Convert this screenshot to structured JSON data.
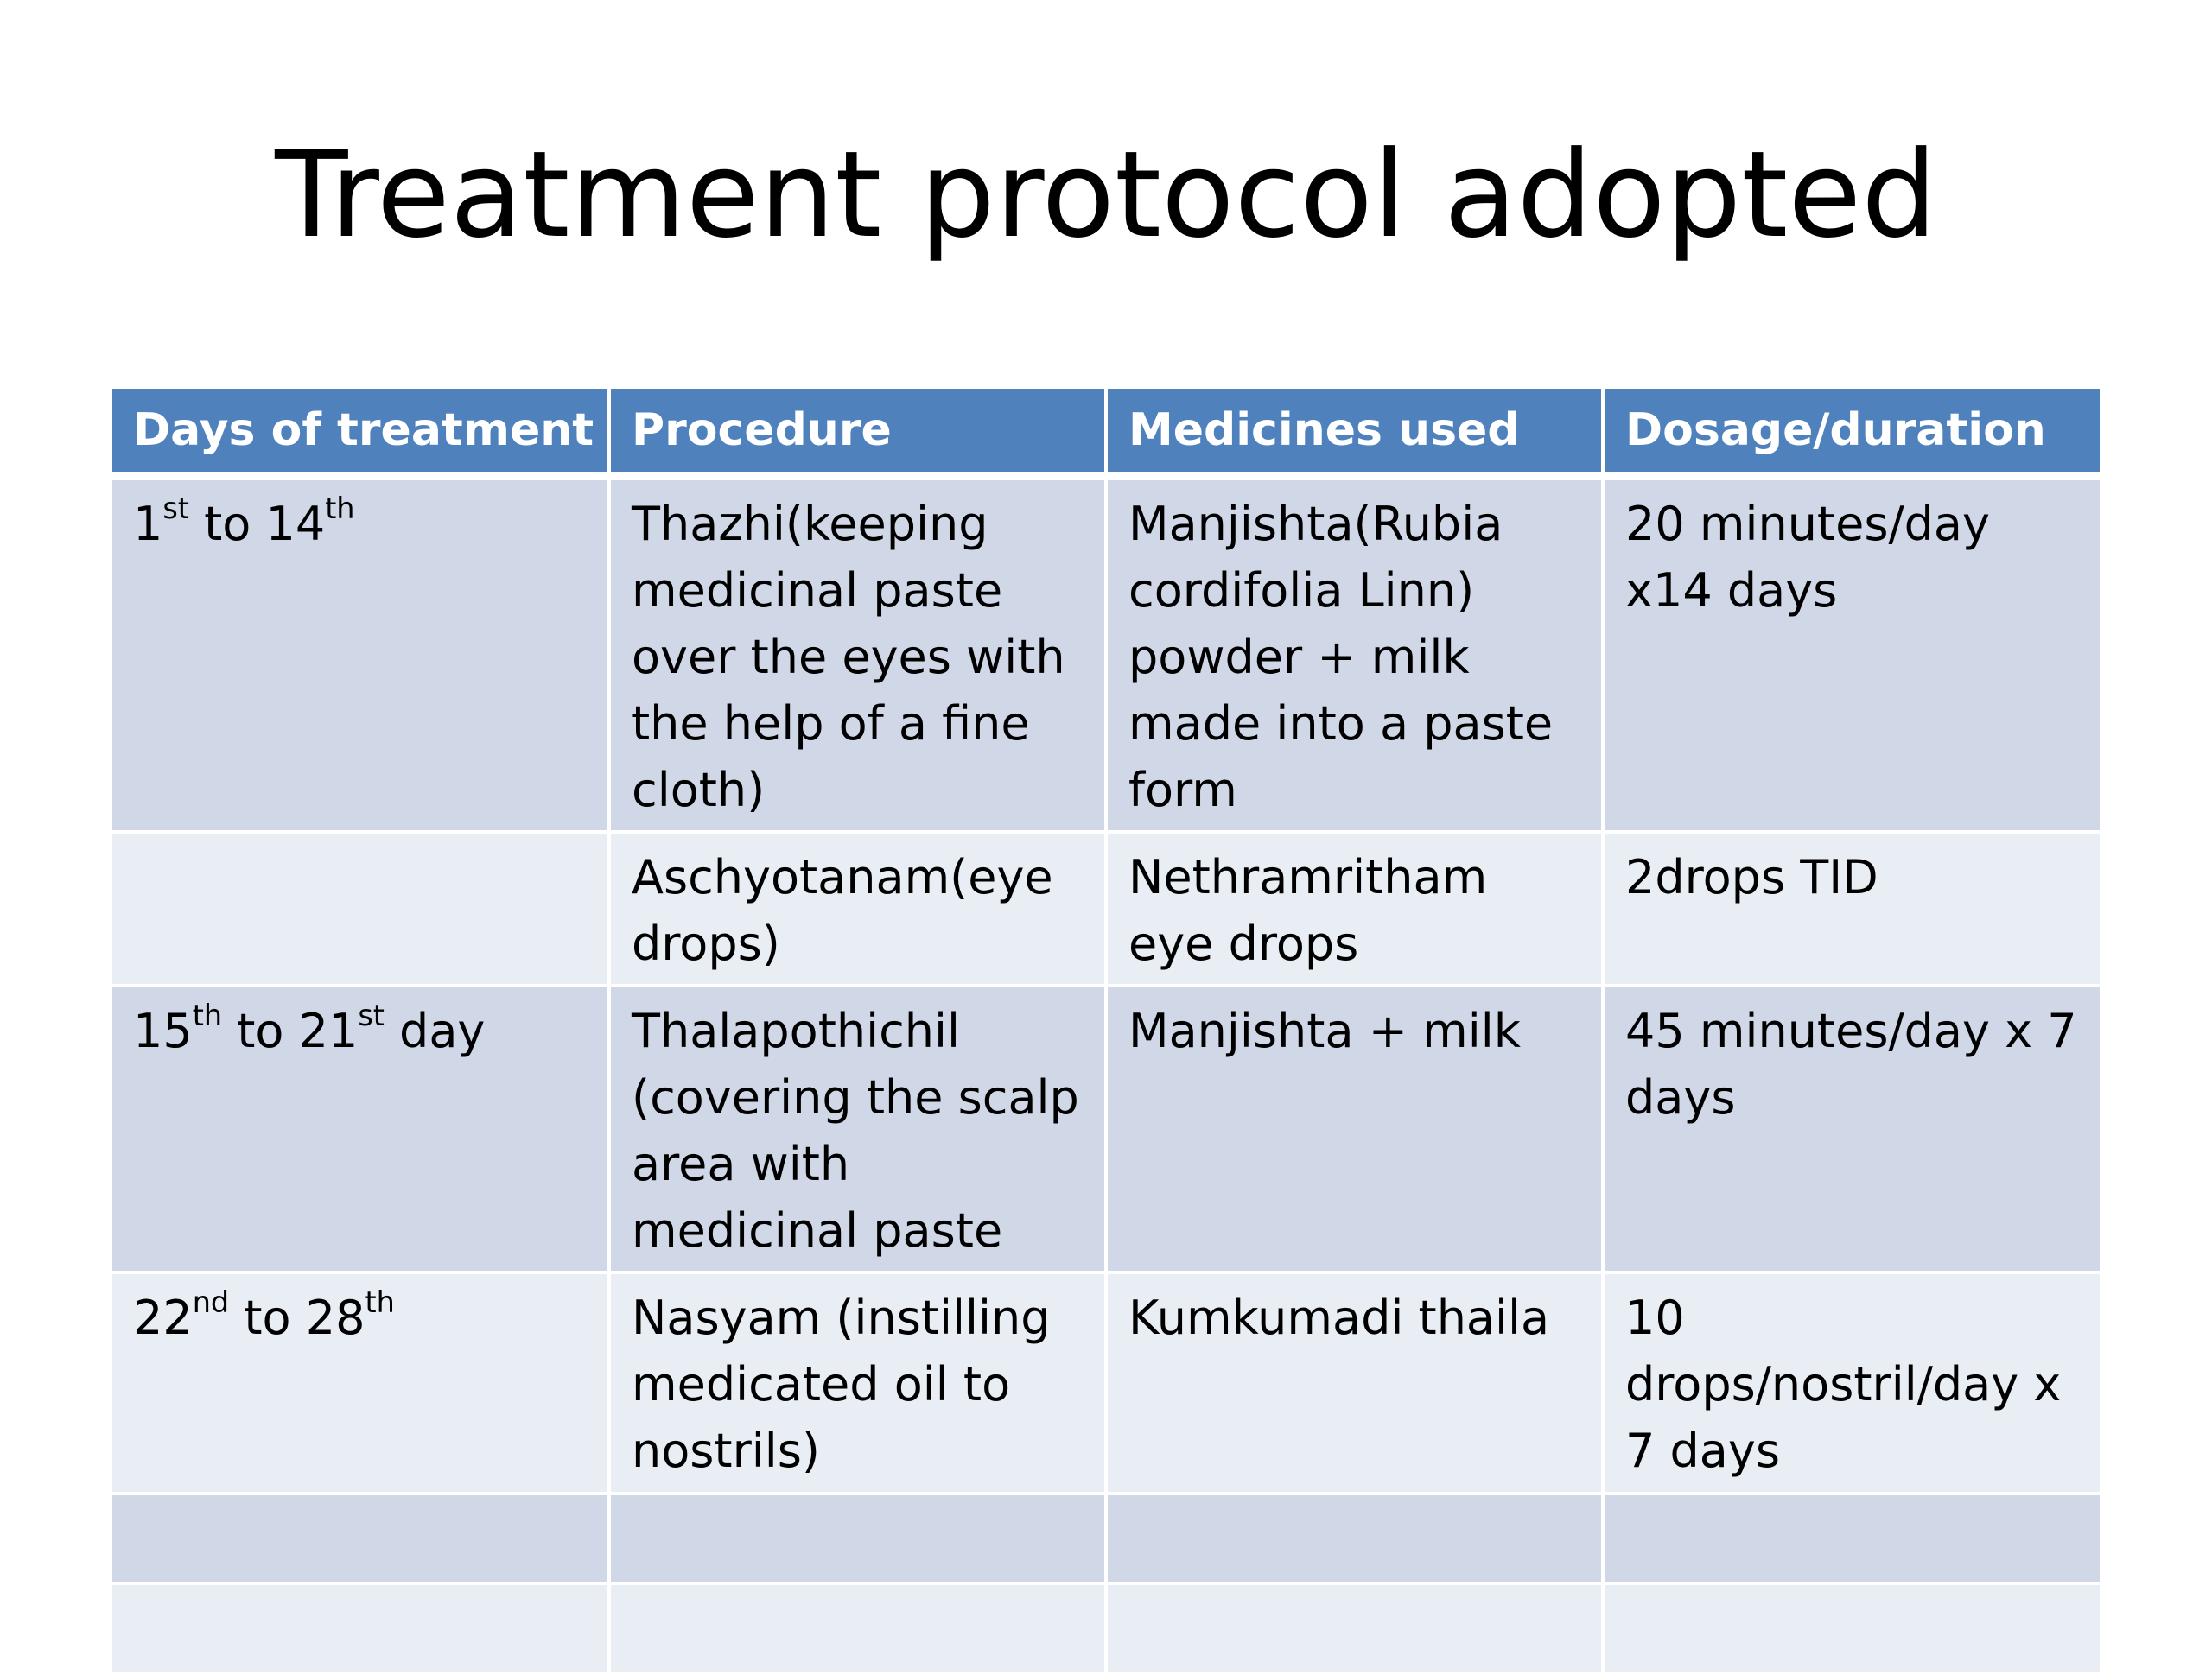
{
  "title": "Treatment protocol adopted",
  "table": {
    "headers": [
      "Days of treatment",
      "Procedure",
      "Medicines used",
      "Dosage/duration"
    ],
    "rows": [
      {
        "days": {
          "a": "1",
          "a_sup": "st",
          "mid": " to 14",
          "b_sup": "th",
          "end": ""
        },
        "procedure": "Thazhi(keeping medicinal paste over the eyes with the help of a fine cloth)",
        "medicines": "Manjishta(Rubia cordifolia Linn) powder + milk made into a paste form",
        "dosage": "20 minutes/day x14 days"
      },
      {
        "days": {
          "a": "",
          "a_sup": "",
          "mid": "",
          "b_sup": "",
          "end": ""
        },
        "procedure": "Aschyotanam(eye drops)",
        "medicines": "Nethramritham eye drops",
        "dosage": "2drops TID"
      },
      {
        "days": {
          "a": "15",
          "a_sup": "th",
          "mid": " to 21",
          "b_sup": "st",
          "end": " day"
        },
        "procedure": "Thalapothichil (covering the scalp area with medicinal paste",
        "medicines": "Manjishta + milk",
        "dosage": "45 minutes/day x 7 days"
      },
      {
        "days": {
          "a": "22",
          "a_sup": "nd",
          "mid": " to 28",
          "b_sup": "th",
          "end": ""
        },
        "procedure": "Nasyam (instilling medicated oil to nostrils)",
        "medicines": "Kumkumadi thaila",
        "dosage": "10 drops/nostril/day x 7 days"
      }
    ]
  }
}
